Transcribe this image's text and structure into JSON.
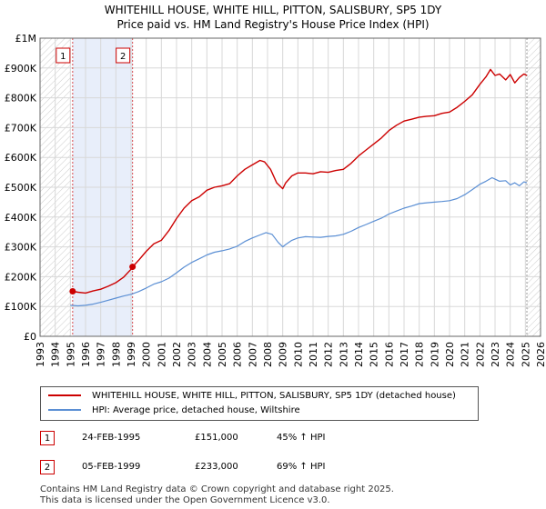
{
  "title_line1": "WHITEHILL HOUSE, WHITE HILL, PITTON, SALISBURY, SP5 1DY",
  "title_line2": "Price paid vs. HM Land Registry's House Price Index (HPI)",
  "colors": {
    "property": "#cc0000",
    "hpi": "#5b8fd4",
    "shade": "#e8eefa",
    "grid": "#d8d8d8"
  },
  "chart_data": {
    "type": "line",
    "title": "Price paid vs. HM Land Registry's House Price Index (HPI)",
    "xlabel": "",
    "ylabel": "",
    "xlim": [
      1993,
      2026
    ],
    "ylim": [
      0,
      1000000
    ],
    "x_ticks": [
      1993,
      1994,
      1995,
      1996,
      1997,
      1998,
      1999,
      2000,
      2001,
      2002,
      2003,
      2004,
      2005,
      2006,
      2007,
      2008,
      2009,
      2010,
      2011,
      2012,
      2013,
      2014,
      2015,
      2016,
      2017,
      2018,
      2019,
      2020,
      2021,
      2022,
      2023,
      2024,
      2025,
      2026
    ],
    "y_ticks": [
      {
        "value": 0,
        "label": "£0"
      },
      {
        "value": 100000,
        "label": "£100K"
      },
      {
        "value": 200000,
        "label": "£200K"
      },
      {
        "value": 300000,
        "label": "£300K"
      },
      {
        "value": 400000,
        "label": "£400K"
      },
      {
        "value": 500000,
        "label": "£500K"
      },
      {
        "value": 600000,
        "label": "£600K"
      },
      {
        "value": 700000,
        "label": "£700K"
      },
      {
        "value": 800000,
        "label": "£800K"
      },
      {
        "value": 900000,
        "label": "£900K"
      },
      {
        "value": 1000000,
        "label": "£1M"
      }
    ],
    "grid": true,
    "series": [
      {
        "name": "WHITEHILL HOUSE, WHITE HILL, PITTON, SALISBURY, SP5 1DY (detached house)",
        "color": "#cc0000",
        "x": [
          1995.15,
          1995.5,
          1996.0,
          1996.5,
          1997.0,
          1997.5,
          1998.0,
          1998.5,
          1999.0,
          1999.1,
          1999.5,
          2000.0,
          2000.5,
          2001.0,
          2001.5,
          2002.0,
          2002.5,
          2003.0,
          2003.5,
          2004.0,
          2004.5,
          2005.0,
          2005.5,
          2006.0,
          2006.5,
          2007.0,
          2007.5,
          2007.8,
          2008.2,
          2008.6,
          2009.0,
          2009.2,
          2009.6,
          2010.0,
          2010.5,
          2011.0,
          2011.5,
          2012.0,
          2012.5,
          2013.0,
          2013.5,
          2014.0,
          2014.5,
          2015.0,
          2015.5,
          2016.0,
          2016.5,
          2017.0,
          2017.5,
          2018.0,
          2018.5,
          2019.0,
          2019.5,
          2020.0,
          2020.5,
          2021.0,
          2021.5,
          2022.0,
          2022.4,
          2022.7,
          2023.0,
          2023.3,
          2023.7,
          2024.0,
          2024.3,
          2024.6,
          2024.9,
          2025.1
        ],
        "values": [
          151000,
          148000,
          145000,
          152000,
          158000,
          168000,
          180000,
          198000,
          225000,
          233000,
          255000,
          285000,
          310000,
          322000,
          355000,
          395000,
          430000,
          455000,
          468000,
          490000,
          500000,
          505000,
          512000,
          538000,
          560000,
          575000,
          590000,
          585000,
          560000,
          515000,
          495000,
          515000,
          538000,
          548000,
          548000,
          545000,
          552000,
          550000,
          556000,
          560000,
          580000,
          605000,
          625000,
          645000,
          665000,
          690000,
          708000,
          722000,
          728000,
          735000,
          738000,
          740000,
          748000,
          752000,
          768000,
          788000,
          810000,
          845000,
          870000,
          895000,
          875000,
          880000,
          860000,
          878000,
          850000,
          868000,
          880000,
          875000
        ]
      },
      {
        "name": "HPI: Average price, detached house, Wiltshire",
        "color": "#5b8fd4",
        "x": [
          1995.0,
          1995.5,
          1996.0,
          1996.5,
          1997.0,
          1997.5,
          1998.0,
          1998.5,
          1999.0,
          1999.5,
          2000.0,
          2000.5,
          2001.0,
          2001.5,
          2002.0,
          2002.5,
          2003.0,
          2003.5,
          2004.0,
          2004.5,
          2005.0,
          2005.5,
          2006.0,
          2006.5,
          2007.0,
          2007.5,
          2007.9,
          2008.3,
          2008.7,
          2009.0,
          2009.2,
          2009.6,
          2010.0,
          2010.5,
          2011.0,
          2011.5,
          2012.0,
          2012.5,
          2013.0,
          2013.5,
          2014.0,
          2014.5,
          2015.0,
          2015.5,
          2016.0,
          2016.5,
          2017.0,
          2017.5,
          2018.0,
          2018.5,
          2019.0,
          2019.5,
          2020.0,
          2020.5,
          2021.0,
          2021.5,
          2022.0,
          2022.4,
          2022.8,
          2023.0,
          2023.3,
          2023.7,
          2024.0,
          2024.3,
          2024.6,
          2024.9,
          2025.1
        ],
        "values": [
          104000,
          102000,
          104000,
          108000,
          114000,
          121000,
          128000,
          135000,
          141000,
          150000,
          162000,
          175000,
          183000,
          195000,
          213000,
          232000,
          248000,
          260000,
          273000,
          282000,
          287000,
          293000,
          302000,
          318000,
          330000,
          340000,
          348000,
          342000,
          315000,
          300000,
          308000,
          322000,
          330000,
          334000,
          333000,
          332000,
          335000,
          337000,
          342000,
          352000,
          365000,
          375000,
          386000,
          396000,
          410000,
          420000,
          430000,
          437000,
          445000,
          448000,
          450000,
          452000,
          455000,
          462000,
          475000,
          492000,
          510000,
          520000,
          532000,
          527000,
          520000,
          522000,
          508000,
          515000,
          505000,
          518000,
          515000
        ]
      }
    ],
    "sales": [
      {
        "label": "1",
        "x": 1995.15,
        "value": 151000
      },
      {
        "label": "2",
        "x": 1999.1,
        "value": 233000
      }
    ],
    "shaded_range": [
      1995.15,
      1999.1
    ],
    "data_end_x": 2025.1
  },
  "legend": {
    "property_label": "WHITEHILL HOUSE, WHITE HILL, PITTON, SALISBURY, SP5 1DY (detached house)",
    "hpi_label": "HPI: Average price, detached house, Wiltshire"
  },
  "sales_table": [
    {
      "num": "1",
      "date": "24-FEB-1995",
      "price": "£151,000",
      "hpi": "45% ↑ HPI"
    },
    {
      "num": "2",
      "date": "05-FEB-1999",
      "price": "£233,000",
      "hpi": "69% ↑ HPI"
    }
  ],
  "footer_line1": "Contains HM Land Registry data © Crown copyright and database right 2025.",
  "footer_line2": "This data is licensed under the Open Government Licence v3.0."
}
